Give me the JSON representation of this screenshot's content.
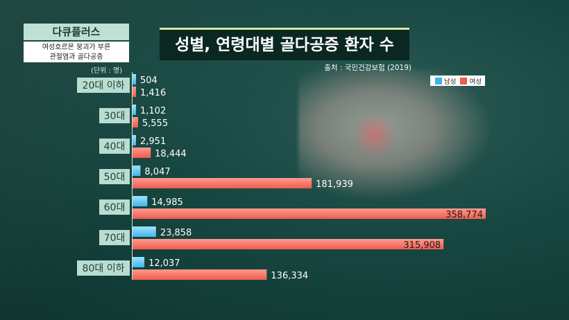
{
  "program_label": "다큐플러스",
  "episode": {
    "line1": "여성호르몬 붕괴가 부른",
    "line2": "관절염과 골다공증"
  },
  "source": "출처 : 국민건강보험 (2019)",
  "colors": {
    "male": "#3fb4ea",
    "female": "#ee5d4f",
    "category_box": "#b9ddd0",
    "category_text": "#1d3f37"
  },
  "chart_data": {
    "type": "bar",
    "orientation": "horizontal",
    "title": "성별, 연령대별 골다공증 환자 수",
    "unit_label": "(단위 : 명)",
    "categories": [
      "20대 이하",
      "30대",
      "40대",
      "50대",
      "60대",
      "70대",
      "80대 이하"
    ],
    "series": [
      {
        "name": "남성",
        "values": [
          504,
          1102,
          2951,
          8047,
          14985,
          23858,
          12037
        ],
        "labels": [
          "504",
          "1,102",
          "2,951",
          "8,047",
          "14,985",
          "23,858",
          "12,037"
        ]
      },
      {
        "name": "여성",
        "values": [
          1416,
          5555,
          18444,
          181939,
          358774,
          315908,
          136334
        ],
        "labels": [
          "1,416",
          "5,555",
          "18,444",
          "181,939",
          "358,774",
          "315,908",
          "136,334"
        ]
      }
    ],
    "xlim": [
      0,
      358774
    ],
    "legend_position": "top-right",
    "grid": false
  }
}
